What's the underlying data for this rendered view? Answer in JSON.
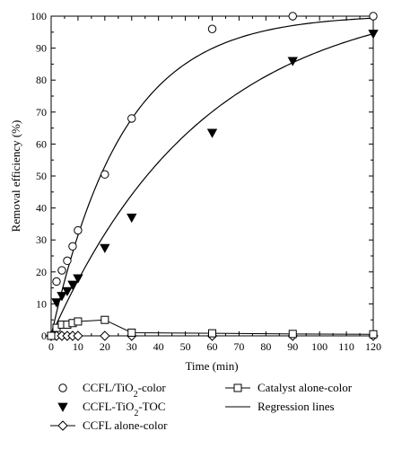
{
  "chart_data": {
    "type": "scatter",
    "xlabel": "Time (min)",
    "ylabel": "Removal efficiency (%)",
    "xlim": [
      0,
      120
    ],
    "ylim": [
      0,
      100
    ],
    "xticks": [
      0,
      10,
      20,
      30,
      40,
      50,
      60,
      70,
      80,
      90,
      100,
      110,
      120
    ],
    "yticks": [
      0,
      10,
      20,
      30,
      40,
      50,
      60,
      70,
      80,
      90,
      100
    ],
    "grid": false,
    "legend_position": "bottom",
    "series": [
      {
        "name": "CCFL/TiO2-color",
        "marker": "open-circle",
        "x": [
          2,
          4,
          6,
          8,
          10,
          20,
          30,
          60,
          90,
          120
        ],
        "y": [
          17,
          20.5,
          23.5,
          28,
          33,
          50.5,
          68,
          96,
          100,
          100
        ]
      },
      {
        "name": "CCFL-TiO2-TOC",
        "marker": "filled-triangle-down",
        "x": [
          2,
          4,
          6,
          8,
          10,
          20,
          30,
          60,
          90,
          120
        ],
        "y": [
          10.5,
          12.5,
          14,
          16,
          18,
          27.5,
          37,
          63.5,
          86,
          94.5
        ]
      },
      {
        "name": "CCFL alone-color",
        "marker": "open-diamond",
        "connected": true,
        "x": [
          0,
          2,
          4,
          6,
          8,
          10,
          20,
          30,
          60,
          90,
          120
        ],
        "y": [
          0,
          0,
          0,
          0,
          0,
          0,
          0,
          0,
          0,
          0,
          0
        ]
      },
      {
        "name": "Catalyst alone-color",
        "marker": "open-square",
        "connected": true,
        "x": [
          0,
          2,
          4,
          6,
          8,
          10,
          20,
          30,
          60,
          90,
          120
        ],
        "y": [
          0,
          2.5,
          3.5,
          3.5,
          4,
          4.5,
          5,
          1,
          0.8,
          0.6,
          0.5
        ]
      },
      {
        "name": "Regression lines",
        "marker": "line",
        "curves": [
          {
            "fit": "CCFL/TiO2-color",
            "form": "exponential-rise",
            "params": {
              "a": 100.5,
              "k": 0.0375
            }
          },
          {
            "fit": "CCFL-TiO2-TOC",
            "form": "exponential-rise",
            "params": {
              "a": 107.5,
              "k": 0.0176
            }
          }
        ]
      }
    ],
    "legend": [
      {
        "key": "circle",
        "prefix": "CCFL/TiO",
        "sub": "2",
        "suffix": "-color"
      },
      {
        "key": "triangle",
        "prefix": "CCFL-TiO",
        "sub": "2",
        "suffix": "-TOC"
      },
      {
        "key": "diamond",
        "prefix": "CCFL alone-color",
        "sub": "",
        "suffix": ""
      },
      {
        "key": "square",
        "prefix": "Catalyst alone-color",
        "sub": "",
        "suffix": ""
      },
      {
        "key": "line",
        "prefix": "Regression lines",
        "sub": "",
        "suffix": ""
      }
    ]
  }
}
